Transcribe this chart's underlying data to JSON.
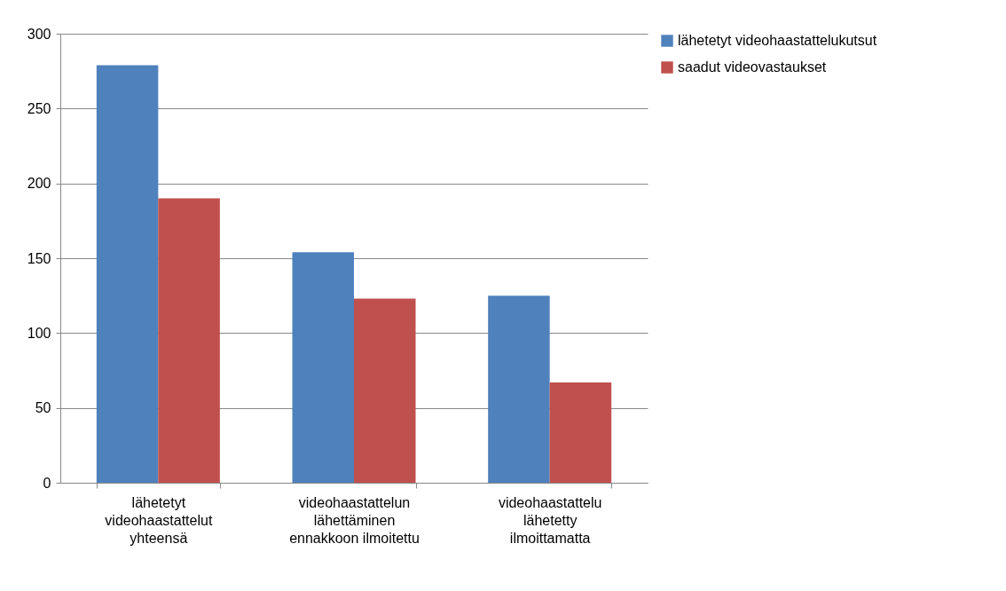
{
  "chart_data": {
    "type": "bar",
    "categories": [
      "lähetetyt videohaastattelut yhteensä",
      "videohaastattelun lähettäminen ennakkoon ilmoitettu",
      "videohaastattelu lähetetty ilmoittamatta"
    ],
    "series": [
      {
        "name": "lähetetyt videohaastattelukutsut",
        "color": "#4f81bd",
        "values": [
          279,
          154,
          125
        ]
      },
      {
        "name": "saadut videovastaukset",
        "color": "#c0504d",
        "values": [
          190,
          123,
          67
        ]
      }
    ],
    "ylim": [
      0,
      300
    ],
    "yticks": [
      0,
      50,
      100,
      150,
      200,
      250,
      300
    ],
    "grid": "y",
    "legend": "right"
  }
}
